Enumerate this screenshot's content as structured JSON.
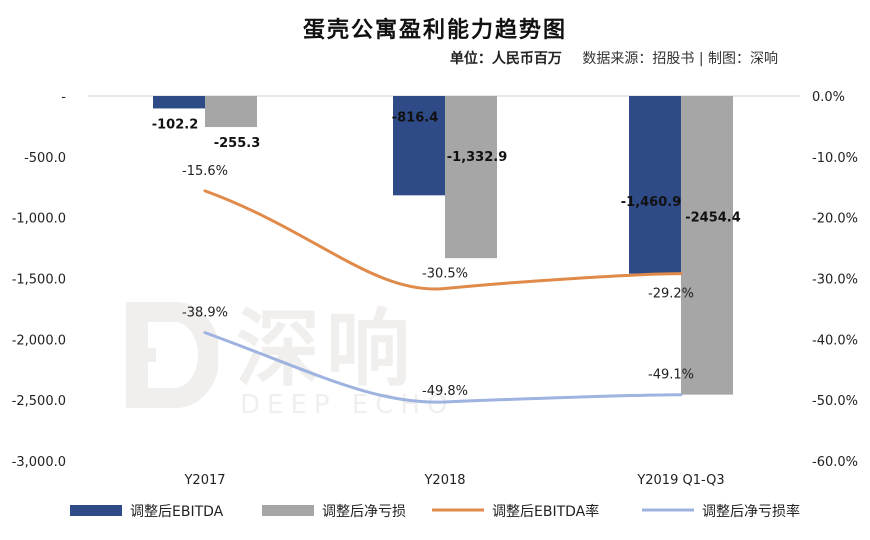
{
  "title": "蛋壳公寓盈利能力趋势图",
  "subtitle": {
    "unit": "单位：人民币百万",
    "source": "数据来源：招股书 | 制图：深响"
  },
  "watermark": {
    "logo_icon": "deep-echo-logo-icon",
    "cn": "深响",
    "en": "DEEP ECHO"
  },
  "chart_data": {
    "type": "bar",
    "categories": [
      "Y2017",
      "Y2018",
      "Y2019 Q1-Q3"
    ],
    "y_left": {
      "ylim": [
        -3000,
        0
      ],
      "ticks": [
        0,
        -500,
        -1000,
        -1500,
        -2000,
        -2500,
        -3000
      ],
      "tick_labels": [
        "-",
        "-500.0",
        "-1,000.0",
        "-1,500.0",
        "-2,000.0",
        "-2,500.0",
        "-3,000.0"
      ]
    },
    "y_right": {
      "ylim": [
        -60,
        0
      ],
      "ticks": [
        0,
        -10,
        -20,
        -30,
        -40,
        -50,
        -60
      ],
      "tick_labels": [
        "0.0%",
        "-10.0%",
        "-20.0%",
        "-30.0%",
        "-40.0%",
        "-50.0%",
        "-60.0%"
      ]
    },
    "series": [
      {
        "name": "调整后EBITDA",
        "type": "bar",
        "axis": "left",
        "color": "#2e4a87",
        "values": [
          -102.2,
          -816.4,
          -1460.9
        ],
        "labels": [
          "-102.2",
          "-816.4",
          "-1,460.9"
        ]
      },
      {
        "name": "调整后净亏损",
        "type": "bar",
        "axis": "left",
        "color": "#a6a6a6",
        "values": [
          -255.3,
          -1332.9,
          -2454.4
        ],
        "labels": [
          "-255.3",
          "-1,332.9",
          "-2454.4"
        ]
      },
      {
        "name": "调整后EBITDA率",
        "type": "line",
        "axis": "right",
        "color": "#e08a4a",
        "values": [
          -15.6,
          -30.5,
          -29.2
        ],
        "labels": [
          "-15.6%",
          "-30.5%",
          "-29.2%"
        ]
      },
      {
        "name": "调整后净亏损率",
        "type": "line",
        "axis": "right",
        "color": "#9fb3e0",
        "values": [
          -38.9,
          -49.8,
          -49.1
        ],
        "labels": [
          "-38.9%",
          "-49.8%",
          "-49.1%"
        ]
      }
    ],
    "legend_position": "bottom",
    "grid": false
  }
}
